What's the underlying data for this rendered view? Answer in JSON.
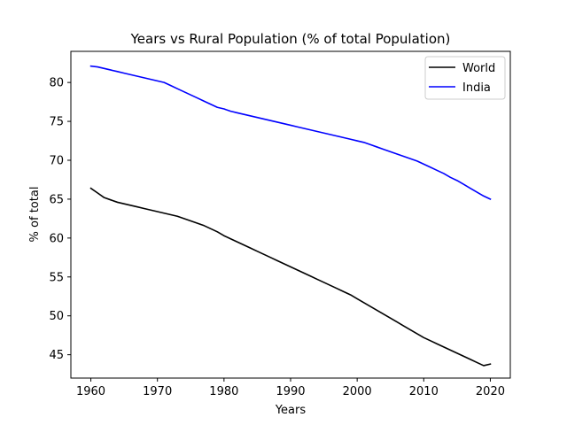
{
  "chart_data": {
    "type": "line",
    "title": "Years vs Rural Population (% of total Population)",
    "xlabel": "Years",
    "ylabel": "% of total",
    "xlim": [
      1957,
      2023
    ],
    "ylim": [
      42,
      84
    ],
    "xticks": [
      1960,
      1970,
      1980,
      1990,
      2000,
      2010,
      2020
    ],
    "yticks": [
      45,
      50,
      55,
      60,
      65,
      70,
      75,
      80
    ],
    "grid": false,
    "legend": "top-right",
    "series": [
      {
        "name": "World",
        "color": "#000000",
        "x": [
          1960,
          1961,
          1962,
          1963,
          1964,
          1965,
          1966,
          1967,
          1968,
          1969,
          1970,
          1971,
          1972,
          1973,
          1974,
          1975,
          1976,
          1977,
          1978,
          1979,
          1980,
          1981,
          1982,
          1983,
          1984,
          1985,
          1986,
          1987,
          1988,
          1989,
          1990,
          1991,
          1992,
          1993,
          1994,
          1995,
          1996,
          1997,
          1998,
          1999,
          2000,
          2001,
          2002,
          2003,
          2004,
          2005,
          2006,
          2007,
          2008,
          2009,
          2010,
          2011,
          2012,
          2013,
          2014,
          2015,
          2016,
          2017,
          2018,
          2019,
          2020
        ],
        "y": [
          66.4,
          65.8,
          65.2,
          64.9,
          64.6,
          64.4,
          64.2,
          64.0,
          63.8,
          63.6,
          63.4,
          63.2,
          63.0,
          62.8,
          62.5,
          62.2,
          61.9,
          61.6,
          61.2,
          60.8,
          60.3,
          59.9,
          59.5,
          59.1,
          58.7,
          58.3,
          57.9,
          57.5,
          57.1,
          56.7,
          56.3,
          55.9,
          55.5,
          55.1,
          54.7,
          54.3,
          53.9,
          53.5,
          53.1,
          52.7,
          52.2,
          51.7,
          51.2,
          50.7,
          50.2,
          49.7,
          49.2,
          48.7,
          48.2,
          47.7,
          47.2,
          46.8,
          46.4,
          46.0,
          45.6,
          45.2,
          44.8,
          44.4,
          44.0,
          43.6,
          43.8
        ]
      },
      {
        "name": "India",
        "color": "#0000ff",
        "x": [
          1960,
          1961,
          1962,
          1963,
          1964,
          1965,
          1966,
          1967,
          1968,
          1969,
          1970,
          1971,
          1972,
          1973,
          1974,
          1975,
          1976,
          1977,
          1978,
          1979,
          1980,
          1981,
          1982,
          1983,
          1984,
          1985,
          1986,
          1987,
          1988,
          1989,
          1990,
          1991,
          1992,
          1993,
          1994,
          1995,
          1996,
          1997,
          1998,
          1999,
          2000,
          2001,
          2002,
          2003,
          2004,
          2005,
          2006,
          2007,
          2008,
          2009,
          2010,
          2011,
          2012,
          2013,
          2014,
          2015,
          2016,
          2017,
          2018,
          2019,
          2020
        ],
        "y": [
          82.1,
          82.0,
          81.8,
          81.6,
          81.4,
          81.2,
          81.0,
          80.8,
          80.6,
          80.4,
          80.2,
          80.0,
          79.6,
          79.2,
          78.8,
          78.4,
          78.0,
          77.6,
          77.2,
          76.8,
          76.6,
          76.3,
          76.1,
          75.9,
          75.7,
          75.5,
          75.3,
          75.1,
          74.9,
          74.7,
          74.5,
          74.3,
          74.1,
          73.9,
          73.7,
          73.5,
          73.3,
          73.1,
          72.9,
          72.7,
          72.5,
          72.3,
          72.0,
          71.7,
          71.4,
          71.1,
          70.8,
          70.5,
          70.2,
          69.9,
          69.5,
          69.1,
          68.7,
          68.3,
          67.8,
          67.4,
          66.9,
          66.4,
          65.9,
          65.4,
          65.0
        ]
      }
    ]
  }
}
